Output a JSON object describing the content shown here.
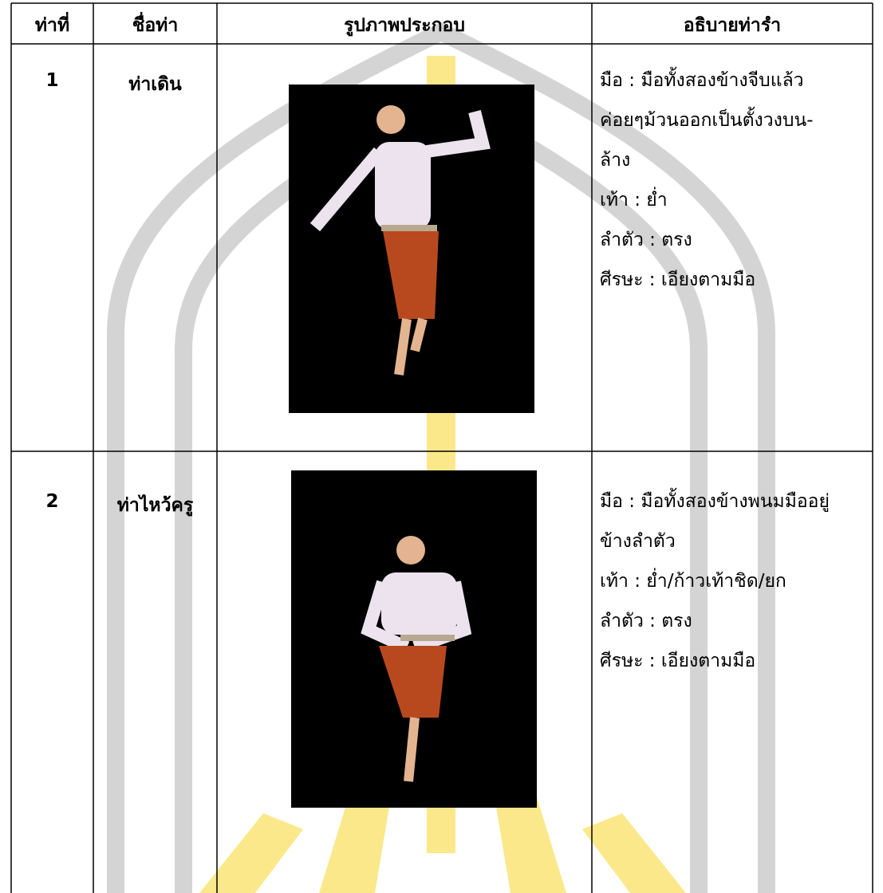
{
  "table": {
    "header": [
      "ท่าที่",
      "ชื่อท่า",
      "รูปภาพประกอบ",
      "อธิบายท่ารำ"
    ],
    "rows": [
      {
        "number": "1",
        "name": "ท่าเดิน",
        "description": [
          "มือ  : มือทั้งสองข้างจีบแล้ว",
          "ค่อยๆม้วนออกเป็นตั้งวงบน-",
          "ล้าง",
          "เท้า : ย่ำ",
          "ลำตัว : ตรง",
          "ศีรษะ : เอียงตามมือ"
        ]
      },
      {
        "number": "2",
        "name": "ท่าไหว้ครู",
        "description": [
          "มือ  : มือทั้งสองข้างพนมมืออยู่",
          "ข้างลำตัว",
          "เท้า : ย่ำ/ก้าวเท้าชิด/ยก",
          "ลำตัว : ตรง",
          "ศีรษะ : เอียงตามมือ"
        ]
      }
    ]
  }
}
